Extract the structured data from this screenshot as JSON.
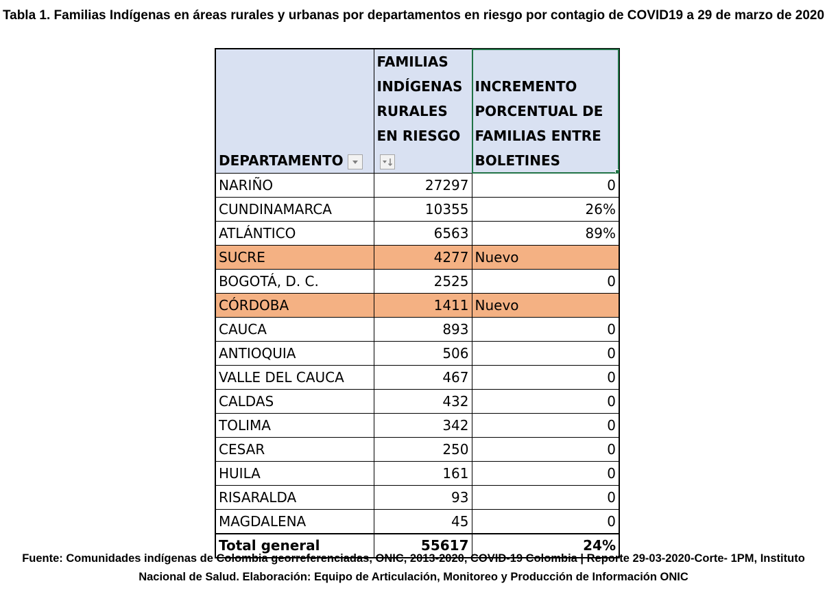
{
  "title": "Tabla 1. Familias Indígenas en áreas rurales y urbanas  por departamentos en riesgo por contagio de COVID19 a 29 de marzo de 2020",
  "table": {
    "headers": {
      "col1": "DEPARTAMENTO",
      "col2": "FAMILIAS INDÍGENAS RURALES EN RIESGO",
      "col3": "INCREMENTO PORCENTUAL DE FAMILIAS ENTRE BOLETINES"
    },
    "rows": [
      {
        "dept": "NARIÑO",
        "familias": "27297",
        "incremento": "0",
        "highlight": false
      },
      {
        "dept": "CUNDINAMARCA",
        "familias": "10355",
        "incremento": "26%",
        "highlight": false
      },
      {
        "dept": "ATLÁNTICO",
        "familias": "6563",
        "incremento": "89%",
        "highlight": false
      },
      {
        "dept": "SUCRE",
        "familias": "4277",
        "incremento": "Nuevo",
        "highlight": true
      },
      {
        "dept": "BOGOTÁ, D. C.",
        "familias": "2525",
        "incremento": "0",
        "highlight": false
      },
      {
        "dept": "CÓRDOBA",
        "familias": "1411",
        "incremento": "Nuevo",
        "highlight": true
      },
      {
        "dept": "CAUCA",
        "familias": "893",
        "incremento": "0",
        "highlight": false
      },
      {
        "dept": "ANTIOQUIA",
        "familias": "506",
        "incremento": "0",
        "highlight": false
      },
      {
        "dept": "VALLE DEL CAUCA",
        "familias": "467",
        "incremento": "0",
        "highlight": false
      },
      {
        "dept": "CALDAS",
        "familias": "432",
        "incremento": "0",
        "highlight": false
      },
      {
        "dept": "TOLIMA",
        "familias": "342",
        "incremento": "0",
        "highlight": false
      },
      {
        "dept": "CESAR",
        "familias": "250",
        "incremento": "0",
        "highlight": false
      },
      {
        "dept": "HUILA",
        "familias": "161",
        "incremento": "0",
        "highlight": false
      },
      {
        "dept": "RISARALDA",
        "familias": "93",
        "incremento": "0",
        "highlight": false
      },
      {
        "dept": "MAGDALENA",
        "familias": "45",
        "incremento": "0",
        "highlight": false
      }
    ],
    "total": {
      "label": "Total general",
      "familias": "55617",
      "incremento": "24%"
    }
  },
  "colors": {
    "header_bg": "#d9e1f2",
    "highlight_bg": "#f4b183",
    "selection": "#217346"
  },
  "icons": {
    "col1_filter": "filter-dropdown-icon",
    "col2_filter": "sort-descending-filter-icon"
  },
  "footer": "Fuente: Comunidades indígenas de Colombia georreferenciadas, ONIC, 2013-2020, COVID-19 Colombia | Reporte 29-03-2020-Corte- 1PM, Instituto Nacional de Salud. Elaboración: Equipo de Articulación, Monitoreo y Producción de Información ONIC"
}
